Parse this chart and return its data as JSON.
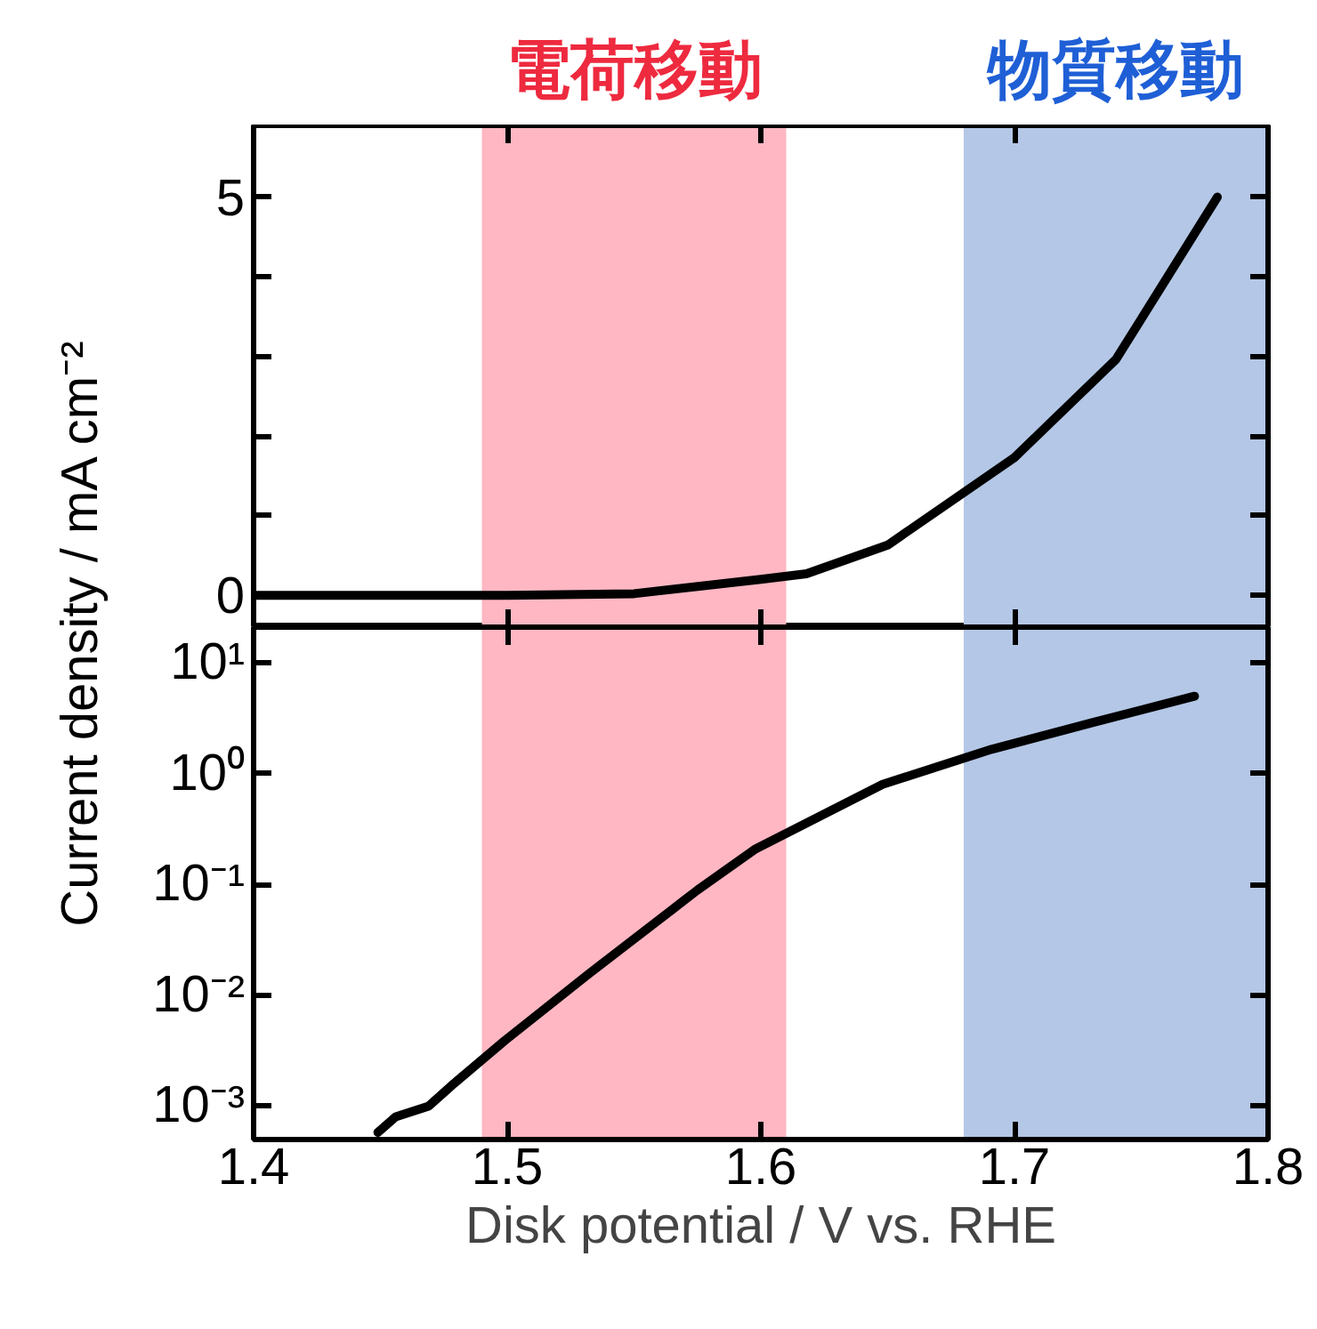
{
  "chart_data": [
    {
      "type": "line",
      "ylabel": "Current density / mA cm⁻²",
      "xlim": [
        1.4,
        1.8
      ],
      "xticks": [
        {
          "value": 1.4,
          "label": null
        },
        {
          "value": 1.5,
          "label": null
        },
        {
          "value": 1.6,
          "label": null
        },
        {
          "value": 1.7,
          "label": null
        },
        {
          "value": 1.8,
          "label": null
        }
      ],
      "ylim": [
        -0.4,
        5.9
      ],
      "yticks": [
        0,
        {
          "value": 1,
          "label": null
        },
        {
          "value": 2,
          "label": null
        },
        {
          "value": 3,
          "label": null
        },
        {
          "value": 4,
          "label": null
        },
        5
      ],
      "tick_labels": "y",
      "grid": false,
      "bands": [
        {
          "axis": "x",
          "from": 1.49,
          "to": 1.61,
          "label": "電荷移動",
          "color": "#ffb7c3"
        },
        {
          "axis": "x",
          "from": 1.68,
          "to": 1.8,
          "label": "物質移動",
          "color": "#b4c7e6"
        }
      ],
      "series": [
        {
          "color": "#000000",
          "x": [
            1.4,
            1.5,
            1.55,
            1.6,
            1.618,
            1.65,
            1.7,
            1.74,
            1.78
          ],
          "values": [
            0,
            0,
            0.02,
            0.2,
            0.27,
            0.63,
            1.73,
            2.96,
            5.0
          ]
        }
      ]
    },
    {
      "type": "line",
      "xlabel": "Disk potential / V vs. RHE",
      "xlim": [
        1.4,
        1.8
      ],
      "xticks": [
        1.4,
        1.5,
        1.6,
        1.7,
        1.8
      ],
      "ylim": [
        0.0005,
        21
      ],
      "log": "y",
      "yticks": [
        {
          "value": 0.001,
          "label": "10⁻³"
        },
        {
          "value": 0.01,
          "label": "10⁻²"
        },
        {
          "value": 0.1,
          "label": "10⁻¹"
        },
        {
          "value": 1,
          "label": "10⁰"
        },
        {
          "value": 10,
          "label": "10¹"
        }
      ],
      "grid": false,
      "bands": [
        {
          "axis": "x",
          "from": 1.49,
          "to": 1.61,
          "color": "#ffb7c3"
        },
        {
          "axis": "x",
          "from": 1.68,
          "to": 1.8,
          "color": "#b4c7e6"
        }
      ],
      "series": [
        {
          "color": "#000000",
          "x": [
            1.449,
            1.456,
            1.469,
            1.479,
            1.499,
            1.532,
            1.575,
            1.598,
            1.648,
            1.691,
            1.731,
            1.771
          ],
          "values": [
            0.00058,
            0.0008,
            0.001,
            0.0016,
            0.0039,
            0.0155,
            0.089,
            0.21,
            0.8,
            1.66,
            2.9,
            5.0
          ]
        }
      ]
    }
  ]
}
